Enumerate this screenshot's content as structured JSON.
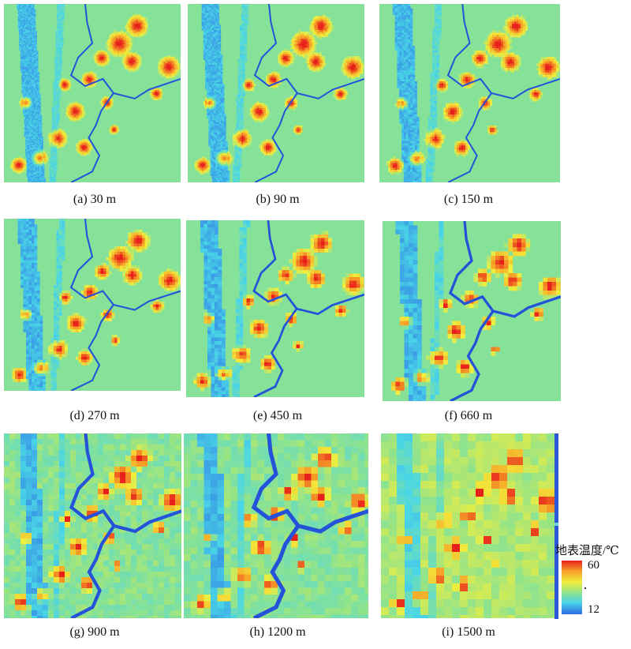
{
  "panels": [
    {
      "caption": "(a) 30 m"
    },
    {
      "caption": "(b) 90 m"
    },
    {
      "caption": "(c) 150 m"
    },
    {
      "caption": "(d) 270 m"
    },
    {
      "caption": "(e) 450 m"
    },
    {
      "caption": "(f) 660 m"
    },
    {
      "caption": "(g) 900 m"
    },
    {
      "caption": "(h) 1200 m"
    },
    {
      "caption": "(i) 1500 m"
    }
  ],
  "legend": {
    "title": "地表温度/℃",
    "max": "60",
    "min": "12",
    "colors": [
      "#e8201c",
      "#f6a227",
      "#f2ee3c",
      "#8ee38e",
      "#4ad6e6",
      "#2d6be6"
    ]
  }
}
